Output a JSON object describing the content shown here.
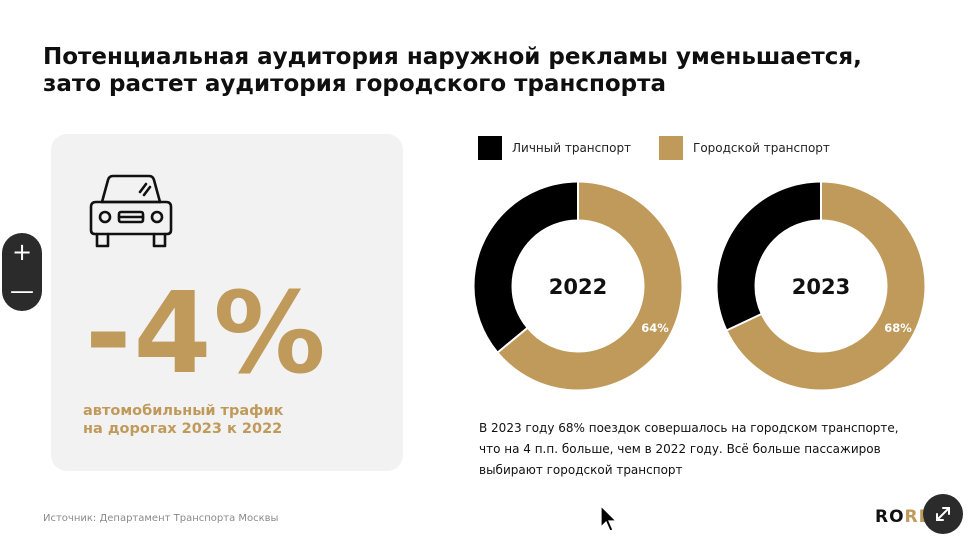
{
  "title": {
    "line1": "Потенциальная аудитория наружной рекламы уменьшается,",
    "line2": "зато растет аудитория городского транспорта"
  },
  "stat_card": {
    "icon": "car-icon",
    "value": "-4%",
    "caption_line1": "автомобильный трафик",
    "caption_line2": "на дорогах 2023 к 2022"
  },
  "zoom": {
    "plus": "+",
    "minus": "—"
  },
  "legend": [
    {
      "label": "Личный транспорт",
      "color": "#000000"
    },
    {
      "label": "Городской транспорт",
      "color": "#c09a5b"
    }
  ],
  "chart_data": [
    {
      "type": "pie",
      "title": "2022",
      "categories": [
        "Личный транспорт",
        "Городской транспорт"
      ],
      "values": [
        36,
        64
      ],
      "labels": [
        "",
        "64%"
      ],
      "colors": [
        "#000000",
        "#c09a5b"
      ]
    },
    {
      "type": "pie",
      "title": "2023",
      "categories": [
        "Личный транспорт",
        "Городской транспорт"
      ],
      "values": [
        32,
        68
      ],
      "labels": [
        "",
        "68%"
      ],
      "colors": [
        "#000000",
        "#c09a5b"
      ]
    }
  ],
  "description": {
    "line1": "В 2023 году 68% поездок совершалось на городском транспорте,",
    "line2": "что на 4 п.п. больше, чем в 2022 году. Всё больше пассажиров",
    "line3": "выбирают городской транспорт"
  },
  "source": "Источник: Департамент Транспорта Москвы",
  "logo": {
    "dark": "RO",
    "gold": "RE"
  },
  "icons": {
    "expand": "expand-icon",
    "cursor": "cursor-icon"
  }
}
